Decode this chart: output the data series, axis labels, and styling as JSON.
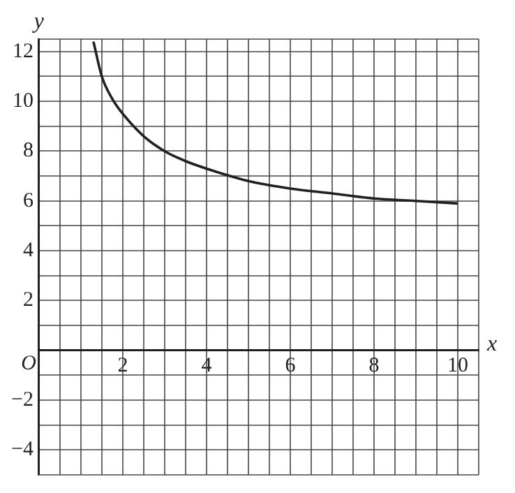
{
  "chart_data": {
    "type": "line",
    "xlabel": "x",
    "ylabel": "y",
    "x": [
      1.3,
      1.5,
      1.75,
      2,
      2.5,
      3,
      3.5,
      4,
      5,
      6,
      7,
      8,
      9,
      10
    ],
    "series": [
      {
        "color": "#231f20",
        "values": [
          12.4,
          11,
          10.1,
          9.5,
          8.6,
          8,
          7.6,
          7.3,
          6.8,
          6.5,
          6.3,
          6.1,
          6,
          5.9
        ]
      }
    ],
    "xlim": [
      0,
      10.5
    ],
    "ylim": [
      -5,
      12.5
    ],
    "xticks": [
      {
        "value": 0.5,
        "label": null
      },
      {
        "value": 1,
        "label": null
      },
      {
        "value": 1.5,
        "label": null
      },
      2,
      {
        "value": 2.5,
        "label": null
      },
      {
        "value": 3,
        "label": null
      },
      {
        "value": 3.5,
        "label": null
      },
      4,
      {
        "value": 4.5,
        "label": null
      },
      {
        "value": 5,
        "label": null
      },
      {
        "value": 5.5,
        "label": null
      },
      6,
      {
        "value": 6.5,
        "label": null
      },
      {
        "value": 7,
        "label": null
      },
      {
        "value": 7.5,
        "label": null
      },
      8,
      {
        "value": 8.5,
        "label": null
      },
      {
        "value": 9,
        "label": null
      },
      {
        "value": 9.5,
        "label": null
      },
      10,
      {
        "value": 10.5,
        "label": null
      }
    ],
    "yticks": [
      {
        "value": -5,
        "label": null
      },
      -4,
      {
        "value": -3,
        "label": null
      },
      -2,
      {
        "value": -1,
        "label": null
      },
      {
        "value": 0,
        "label": null
      },
      {
        "value": 1,
        "label": null
      },
      2,
      {
        "value": 3,
        "label": null
      },
      4,
      {
        "value": 5,
        "label": null
      },
      6,
      {
        "value": 7,
        "label": null
      },
      8,
      {
        "value": 9,
        "label": null
      },
      10,
      {
        "value": 11,
        "label": null
      },
      12,
      {
        "value": 12.5,
        "label": null
      }
    ],
    "annotations": [
      "O"
    ],
    "grid": true,
    "legend": false,
    "marker": "none",
    "line_style": "solid"
  }
}
